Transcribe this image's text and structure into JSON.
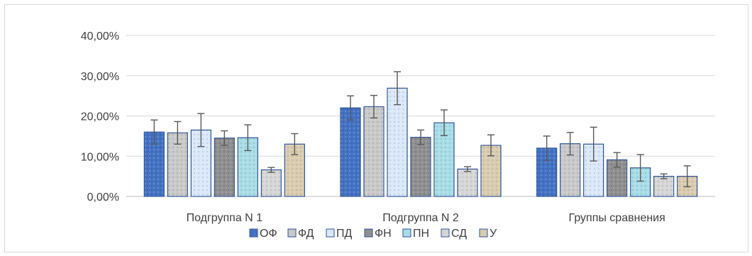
{
  "chart_data": {
    "type": "bar",
    "categories": [
      "Подгруппа N 1",
      "Подгруппа N 2",
      "Группы сравнения"
    ],
    "ylim": [
      0,
      0.4
    ],
    "yticks": [
      "0,00%",
      "10,00%",
      "20,00%",
      "30,00%",
      "40,00%"
    ],
    "grid": true,
    "legend_position": "bottom",
    "series": [
      {
        "name": "ОФ",
        "color": "#4472c4",
        "values": [
          0.16,
          0.22,
          0.12
        ],
        "errors": [
          0.03,
          0.03,
          0.03
        ]
      },
      {
        "name": "ФД",
        "color": "#c9c9c9",
        "values": [
          0.158,
          0.223,
          0.131
        ],
        "errors": [
          0.028,
          0.028,
          0.028
        ]
      },
      {
        "name": "ПД",
        "color": "#dae8fa",
        "values": [
          0.165,
          0.269,
          0.13
        ],
        "errors": [
          0.041,
          0.041,
          0.042
        ]
      },
      {
        "name": "ФН",
        "color": "#8f8f8f",
        "values": [
          0.145,
          0.147,
          0.091
        ],
        "errors": [
          0.018,
          0.018,
          0.018
        ]
      },
      {
        "name": "ПН",
        "color": "#a8dde6",
        "values": [
          0.146,
          0.183,
          0.071
        ],
        "errors": [
          0.032,
          0.032,
          0.033
        ]
      },
      {
        "name": "СД",
        "color": "#d6d6d6",
        "values": [
          0.066,
          0.068,
          0.05
        ],
        "errors": [
          0.006,
          0.006,
          0.006
        ]
      },
      {
        "name": "У",
        "color": "#d9ccb0",
        "values": [
          0.13,
          0.127,
          0.05
        ],
        "errors": [
          0.026,
          0.026,
          0.026
        ]
      }
    ]
  }
}
